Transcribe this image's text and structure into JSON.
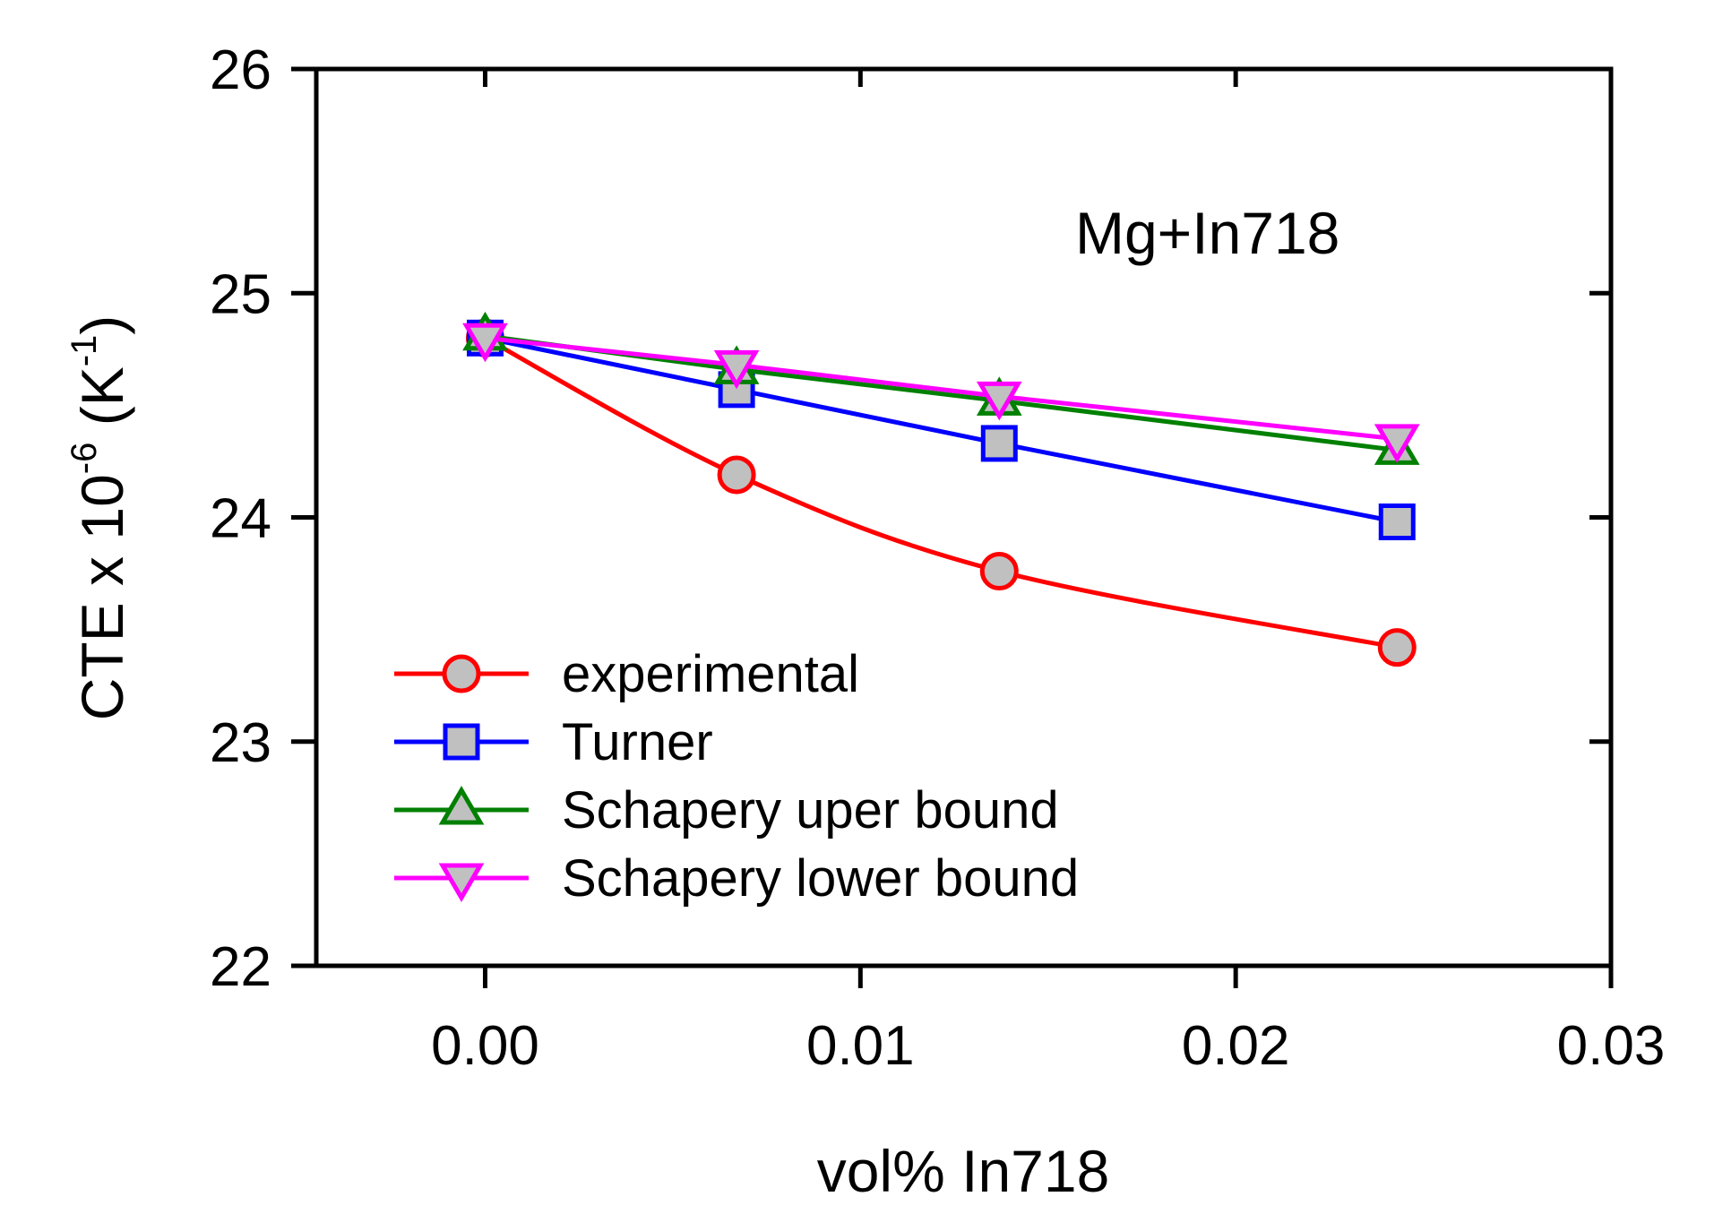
{
  "chart_data": {
    "type": "line",
    "title": "",
    "annotation": "Mg+In718",
    "xlabel": "vol% In718",
    "ylabel": {
      "base": "CTE x 10",
      "exp": "-6",
      "unit_open": " (K",
      "unit_exp": "-1",
      "unit_close": ")"
    },
    "xlim": [
      -0.0045,
      0.03
    ],
    "ylim": [
      22,
      26
    ],
    "x_ticks": [
      0.0,
      0.01,
      0.02,
      0.03
    ],
    "x_tick_labels": [
      "0.00",
      "0.01",
      "0.02",
      "0.03"
    ],
    "y_ticks": [
      22,
      23,
      24,
      25,
      26
    ],
    "y_tick_labels": [
      "22",
      "23",
      "24",
      "25",
      "26"
    ],
    "legend_position": "lower-left",
    "x": [
      0.0,
      0.0067,
      0.0137,
      0.0243
    ],
    "series": [
      {
        "name": "experimental",
        "color": "#ff0000",
        "marker": "circle",
        "smooth": true,
        "values": [
          24.8,
          24.19,
          23.76,
          23.42
        ]
      },
      {
        "name": "Turner",
        "color": "#0000ff",
        "marker": "square",
        "smooth": false,
        "values": [
          24.8,
          24.57,
          24.33,
          23.98
        ]
      },
      {
        "name": "Schapery uper bound",
        "color": "#008000",
        "marker": "triangle-up",
        "smooth": false,
        "values": [
          24.81,
          24.66,
          24.52,
          24.3
        ]
      },
      {
        "name": "Schapery lower bound",
        "color": "#ff00ff",
        "marker": "triangle-down",
        "smooth": false,
        "values": [
          24.8,
          24.68,
          24.54,
          24.35
        ]
      }
    ],
    "marker_fill": "#c0c0c0"
  }
}
